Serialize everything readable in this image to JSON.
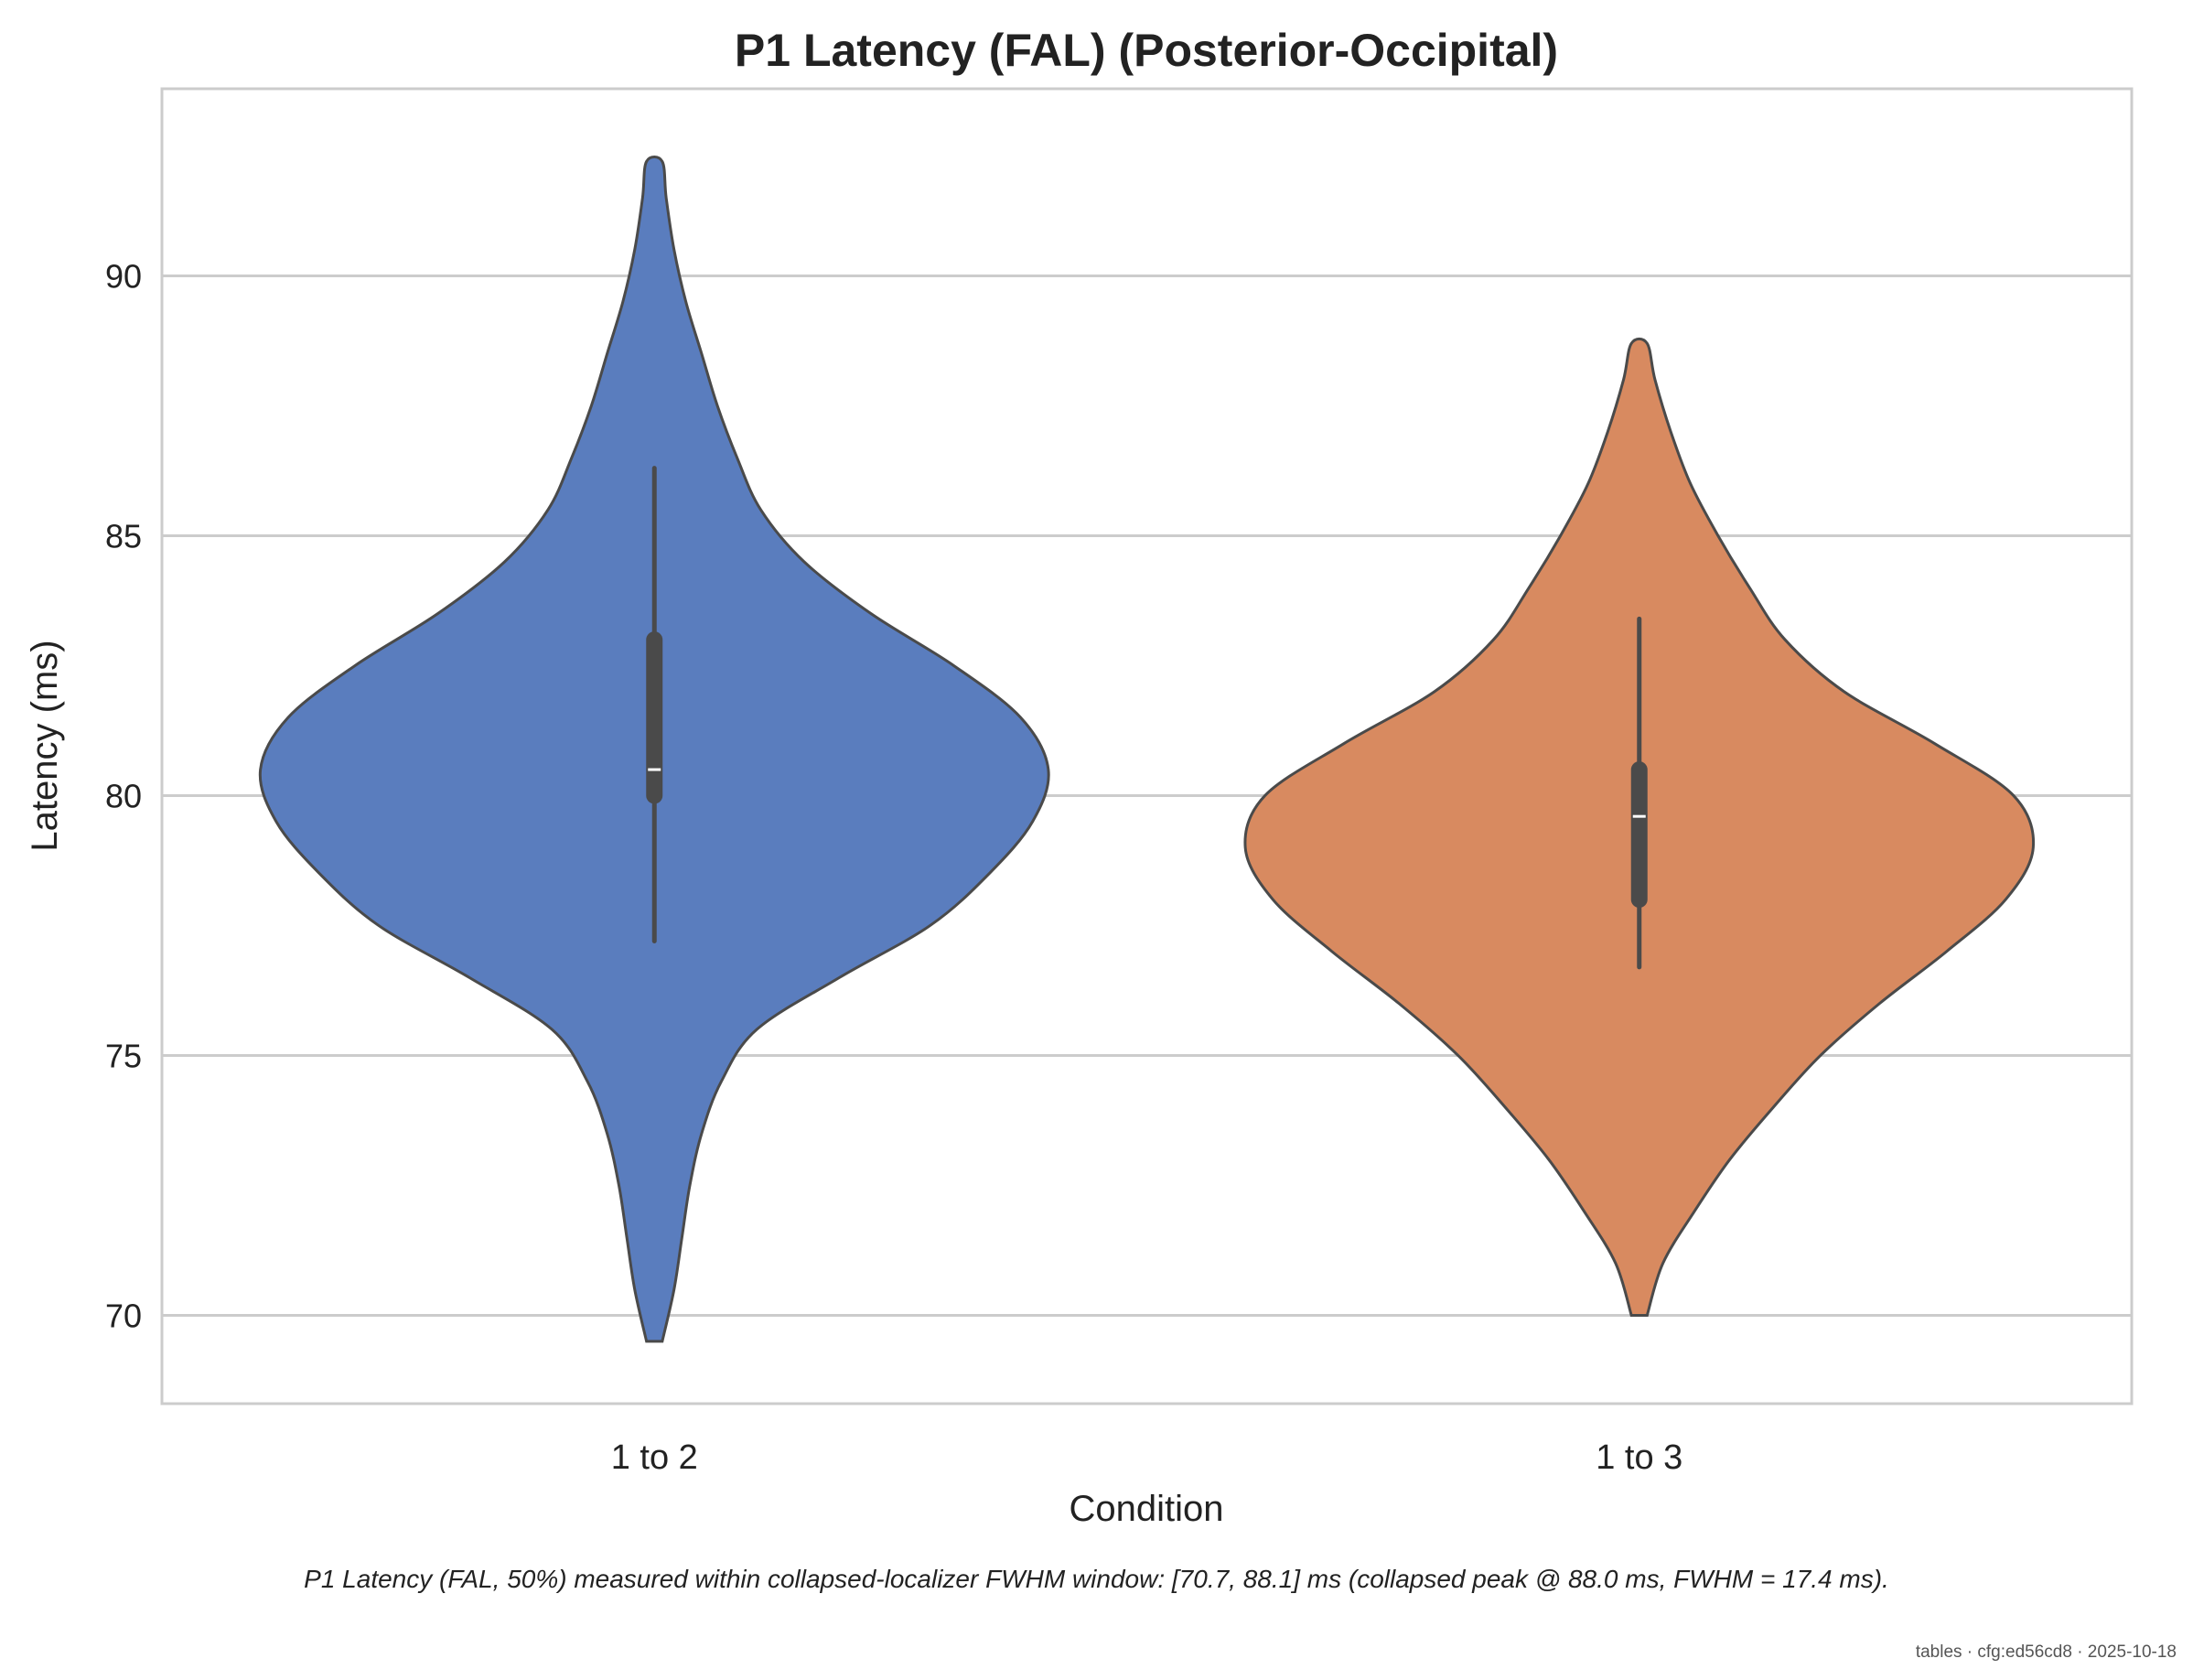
{
  "chart_data": {
    "type": "violin",
    "title": "P1 Latency (FAL) (Posterior-Occipital)",
    "xlabel": "Condition",
    "ylabel": "Latency (ms)",
    "categories": [
      "1 to 2",
      "1 to 3"
    ],
    "ylim": [
      68.3,
      93.6
    ],
    "yticks": [
      70,
      75,
      80,
      85,
      90
    ],
    "grid": true,
    "colors": [
      "#5a7dbe",
      "#d88a60"
    ],
    "violins": [
      {
        "category": "1 to 2",
        "color": "#5a7dbe",
        "min": 69.5,
        "max": 92.2,
        "median": 80.5,
        "q1": 80.0,
        "q3": 83.0,
        "whisker_low": 77.2,
        "whisker_high": 86.3,
        "density": [
          [
            69.5,
            0.02
          ],
          [
            70.5,
            0.05
          ],
          [
            71.5,
            0.07
          ],
          [
            72.5,
            0.09
          ],
          [
            73.5,
            0.12
          ],
          [
            74.5,
            0.17
          ],
          [
            75.5,
            0.26
          ],
          [
            76.5,
            0.47
          ],
          [
            77.5,
            0.7
          ],
          [
            78.5,
            0.85
          ],
          [
            79.5,
            0.96
          ],
          [
            80.5,
            1.0
          ],
          [
            81.5,
            0.93
          ],
          [
            82.5,
            0.76
          ],
          [
            83.5,
            0.55
          ],
          [
            84.5,
            0.38
          ],
          [
            85.5,
            0.27
          ],
          [
            86.5,
            0.21
          ],
          [
            87.5,
            0.16
          ],
          [
            88.5,
            0.12
          ],
          [
            89.5,
            0.08
          ],
          [
            90.5,
            0.05
          ],
          [
            91.5,
            0.03
          ],
          [
            92.2,
            0.02
          ]
        ]
      },
      {
        "category": "1 to 3",
        "color": "#d88a60",
        "min": 70.0,
        "max": 88.7,
        "median": 79.6,
        "q1": 78.0,
        "q3": 80.5,
        "whisker_low": 76.7,
        "whisker_high": 83.4,
        "density": [
          [
            70.0,
            0.02
          ],
          [
            71.0,
            0.06
          ],
          [
            72.0,
            0.14
          ],
          [
            73.0,
            0.23
          ],
          [
            74.0,
            0.34
          ],
          [
            75.0,
            0.46
          ],
          [
            76.0,
            0.61
          ],
          [
            77.0,
            0.78
          ],
          [
            78.0,
            0.93
          ],
          [
            79.0,
            1.0
          ],
          [
            80.0,
            0.95
          ],
          [
            81.0,
            0.75
          ],
          [
            82.0,
            0.52
          ],
          [
            83.0,
            0.37
          ],
          [
            84.0,
            0.28
          ],
          [
            85.0,
            0.2
          ],
          [
            86.0,
            0.13
          ],
          [
            87.0,
            0.08
          ],
          [
            88.0,
            0.04
          ],
          [
            88.7,
            0.02
          ]
        ]
      }
    ]
  },
  "footnote": "P1 Latency (FAL, 50%) measured within collapsed-localizer FWHM window: [70.7, 88.1] ms (collapsed peak @ 88.0 ms, FWHM = 17.4 ms).",
  "stamp": "tables · cfg:ed56cd8 · 2025-10-18"
}
